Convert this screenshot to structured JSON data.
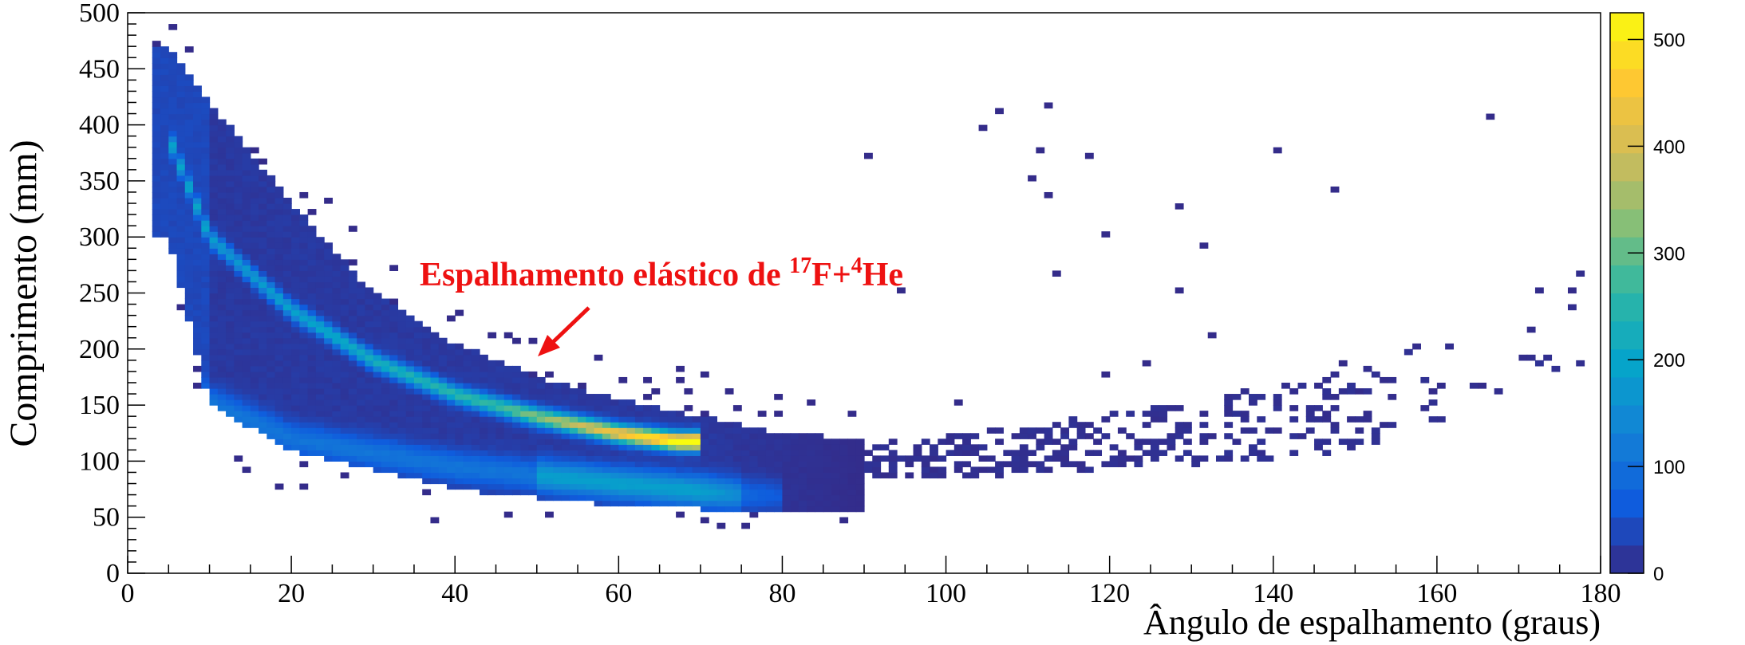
{
  "chart_data": {
    "type": "heatmap",
    "title": "",
    "xlabel": "Ângulo de espalhamento (graus)",
    "ylabel": "Comprimento (mm)",
    "xlim": [
      0,
      180
    ],
    "ylim": [
      0,
      500
    ],
    "x_ticks": [
      0,
      20,
      40,
      60,
      80,
      100,
      120,
      140,
      160,
      180
    ],
    "y_ticks": [
      0,
      50,
      100,
      150,
      200,
      250,
      300,
      350,
      400,
      450,
      500
    ],
    "colorbar": {
      "range": [
        0,
        525
      ],
      "ticks": [
        0,
        100,
        200,
        300,
        400,
        500
      ],
      "colormap": "parula",
      "colors": [
        "#352a87",
        "#0f5cdd",
        "#1481d6",
        "#06a4ca",
        "#2eb7a4",
        "#87bf77",
        "#d1bb59",
        "#fec832",
        "#f9fb0e"
      ]
    },
    "annotation": {
      "text_main": "Espalhamento elástico de ",
      "sup1": "17",
      "mid": "F+",
      "sup2": "4",
      "end": "He",
      "color": "#ee1111",
      "arrow_to": [
        50,
        195
      ]
    },
    "loci": [
      {
        "name_hint": "elastic band",
        "x": [
          5,
          10,
          20,
          30,
          40,
          50,
          60,
          67
        ],
        "y": [
          390,
          300,
          235,
          190,
          160,
          140,
          125,
          118
        ],
        "peak_count": 520
      },
      {
        "name_hint": "lower band",
        "x": [
          8,
          20,
          40,
          60,
          75,
          85
        ],
        "y": [
          160,
          120,
          95,
          80,
          70,
          68
        ],
        "peak_count": 200
      },
      {
        "name_hint": "background",
        "x": [
          90,
          110,
          130,
          150
        ],
        "y": [
          100,
          110,
          125,
          145
        ],
        "peak_count": 30
      }
    ],
    "grid": false,
    "legend": "none"
  }
}
